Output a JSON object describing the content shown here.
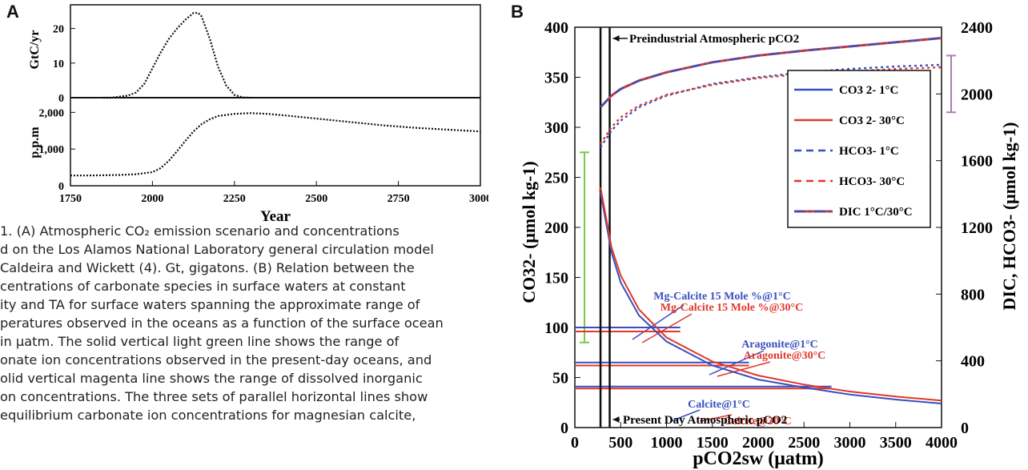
{
  "panels": {
    "a": "A",
    "b": "B"
  },
  "caption_lines": [
    "1. (A) Atmospheric CO₂ emission scenario and concentrations",
    "d on the Los Alamos National Laboratory general circulation model",
    "Caldeira and Wickett (4). Gt, gigatons. (B) Relation between the",
    "centrations of carbonate species in surface waters at constant",
    "ity and TA for surface waters spanning the approximate range of",
    "peratures observed in the oceans as a function of the surface ocean",
    "in μatm. The solid vertical light green line shows the range of",
    "onate ion concentrations observed in the present-day oceans, and",
    "olid vertical magenta line shows the range of dissolved inorganic",
    "on concentrations. The three sets of parallel horizontal lines show",
    "equilibrium carbonate ion concentrations for magnesian calcite,"
  ],
  "chart_data": [
    {
      "type": "line",
      "panel": "A-top",
      "ylabel": "GtC/yr",
      "ylim": [
        0,
        25
      ],
      "yticks": [
        "0",
        "10",
        "20"
      ],
      "xlim": [
        1750,
        3000
      ],
      "series": [
        {
          "x": [
            1850,
            1875,
            1900,
            1925,
            1950,
            1975,
            2000,
            2025,
            2050,
            2075,
            2100,
            2125,
            2140,
            2150,
            2175,
            2200,
            2225,
            2250,
            2275,
            2300
          ],
          "values": [
            0,
            0,
            0.3,
            0.6,
            1.5,
            4,
            8.5,
            13,
            17,
            20,
            22.5,
            24.5,
            24.5,
            23.5,
            17,
            9,
            3.5,
            0.8,
            0.1,
            0
          ]
        }
      ]
    },
    {
      "type": "line",
      "panel": "A-bottom",
      "ylabel": "p.p.m",
      "xlabel": "Year",
      "ylim": [
        0,
        2400
      ],
      "yticks": [
        "0",
        "1,000",
        "2,000"
      ],
      "xticks": [
        "1750",
        "2000",
        "2250",
        "2500",
        "2750",
        "3000"
      ],
      "xlim": [
        1750,
        3000
      ],
      "series": [
        {
          "x": [
            1750,
            1800,
            1850,
            1900,
            1950,
            2000,
            2025,
            2050,
            2075,
            2100,
            2125,
            2150,
            2175,
            2200,
            2250,
            2300,
            2350,
            2400,
            2500,
            2600,
            2700,
            2800,
            2900,
            3000
          ],
          "values": [
            280,
            280,
            285,
            295,
            315,
            370,
            480,
            680,
            940,
            1220,
            1480,
            1680,
            1810,
            1900,
            1960,
            1980,
            1960,
            1920,
            1830,
            1740,
            1650,
            1580,
            1530,
            1480
          ]
        }
      ]
    },
    {
      "type": "line",
      "panel": "B",
      "xlabel": "pCO2sw (μatm)",
      "ylabel": "CO32- (μmol kg-1)",
      "ylabel_right": "DIC, HCO3- (μmol kg-1)",
      "xlim": [
        0,
        4000
      ],
      "ylim": [
        0,
        400
      ],
      "ylim_right": [
        0,
        2400
      ],
      "xticks": [
        "0",
        "500",
        "1000",
        "1500",
        "2000",
        "2500",
        "3000",
        "3500",
        "4000"
      ],
      "yticks": [
        "0",
        "50",
        "100",
        "150",
        "200",
        "250",
        "300",
        "350",
        "400"
      ],
      "yticks_right": [
        "0",
        "400",
        "800",
        "1200",
        "1600",
        "2000",
        "2400"
      ],
      "legend_position": "right",
      "series": [
        {
          "name": "CO3 2- 1°C",
          "axis": "left",
          "color": "#3a4fbf",
          "style": "solid",
          "x": [
            280,
            400,
            500,
            700,
            1000,
            1500,
            2000,
            2500,
            3000,
            3500,
            4000
          ],
          "values": [
            235,
            175,
            145,
            112,
            86,
            62,
            48,
            40,
            33,
            28,
            24
          ]
        },
        {
          "name": "CO3 2- 30°C",
          "axis": "left",
          "color": "#e0382a",
          "style": "solid",
          "x": [
            280,
            400,
            500,
            700,
            1000,
            1500,
            2000,
            2500,
            3000,
            3500,
            4000
          ],
          "values": [
            240,
            180,
            152,
            118,
            90,
            66,
            52,
            43,
            36,
            31,
            27
          ]
        },
        {
          "name": "HCO3- 1°C",
          "axis": "right",
          "color": "#3a4fbf",
          "style": "dashed",
          "x": [
            280,
            400,
            500,
            700,
            1000,
            1500,
            2000,
            2500,
            3000,
            3500,
            4000
          ],
          "values": [
            1680,
            1780,
            1840,
            1920,
            1990,
            2060,
            2100,
            2130,
            2150,
            2165,
            2175
          ]
        },
        {
          "name": "HCO3- 30°C",
          "axis": "right",
          "color": "#e0382a",
          "style": "dashed",
          "x": [
            280,
            400,
            500,
            700,
            1000,
            1500,
            2000,
            2500,
            3000,
            3500,
            4000
          ],
          "values": [
            1700,
            1800,
            1860,
            1930,
            1995,
            2055,
            2095,
            2120,
            2135,
            2150,
            2160
          ]
        },
        {
          "name": "DIC 1°C/30°C",
          "axis": "right",
          "color": "#3a4fbf",
          "color2": "#e0382a",
          "style": "dashdot",
          "x": [
            280,
            400,
            500,
            700,
            1000,
            1500,
            2000,
            2500,
            3000,
            3500,
            4000
          ],
          "values": [
            1920,
            1990,
            2030,
            2080,
            2130,
            2190,
            2230,
            2260,
            2285,
            2310,
            2335
          ]
        }
      ],
      "vertical_lines": [
        {
          "label": "Preindustrial Atmospheric pCO2",
          "x": 280
        },
        {
          "label": "Present Day Atmospheric pCO2",
          "x": 380
        }
      ],
      "range_bars": [
        {
          "axis": "left",
          "color": "#7ac943",
          "range": [
            85,
            275
          ]
        },
        {
          "axis": "right",
          "color": "#b07ab8",
          "range": [
            1890,
            2230
          ]
        }
      ],
      "thresholds": [
        {
          "label": "Mg-Calcite 15 Mole %@1°C",
          "color": "#3a4fbf",
          "value": 100
        },
        {
          "label": "Mg-Calcite 15 Mole %@30°C",
          "color": "#e0382a",
          "value": 96
        },
        {
          "label": "Aragonite@1°C",
          "color": "#3a4fbf",
          "value": 65
        },
        {
          "label": "Aragonite@30°C",
          "color": "#e0382a",
          "value": 62
        },
        {
          "label": "Calcite@1°C",
          "color": "#3a4fbf",
          "value": 41
        },
        {
          "label": "Calcite@30°C",
          "color": "#e0382a",
          "value": 39
        }
      ]
    }
  ]
}
